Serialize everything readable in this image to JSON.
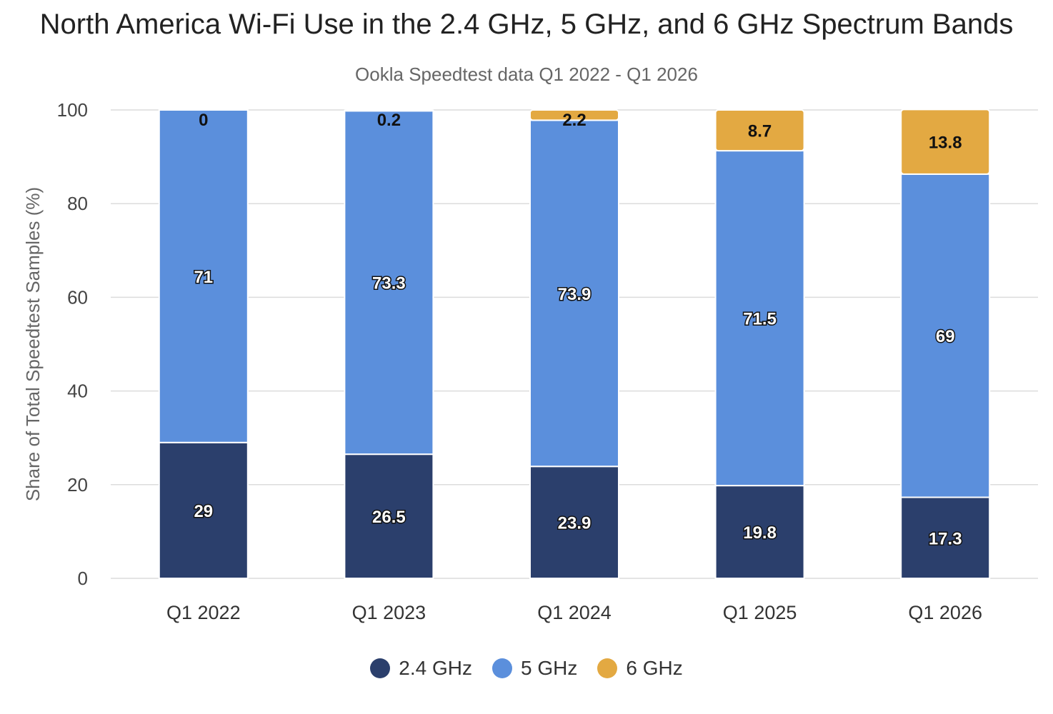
{
  "chart_data": {
    "type": "bar",
    "stacked": true,
    "title": "North America Wi-Fi Use in the 2.4 GHz, 5 GHz, and 6 GHz Spectrum Bands",
    "subtitle": "Ookla Speedtest data Q1 2022 - Q1 2026",
    "xlabel": "",
    "ylabel": "Share of Total Speedtest Samples (%)",
    "ylim": [
      0,
      100
    ],
    "yticks": [
      0,
      20,
      40,
      60,
      80,
      100
    ],
    "grid": true,
    "legend_position": "bottom",
    "categories": [
      "Q1 2022",
      "Q1 2023",
      "Q1 2024",
      "Q1 2025",
      "Q1 2026"
    ],
    "series": [
      {
        "name": "2.4 GHz",
        "color": "#2b3f6c",
        "values": [
          29,
          26.5,
          23.9,
          19.8,
          17.3
        ]
      },
      {
        "name": "5 GHz",
        "color": "#5b8fdc",
        "values": [
          71,
          73.3,
          73.9,
          71.5,
          69
        ]
      },
      {
        "name": "6 GHz",
        "color": "#e3a942",
        "values": [
          0,
          0.2,
          2.2,
          8.7,
          13.8
        ]
      }
    ]
  }
}
